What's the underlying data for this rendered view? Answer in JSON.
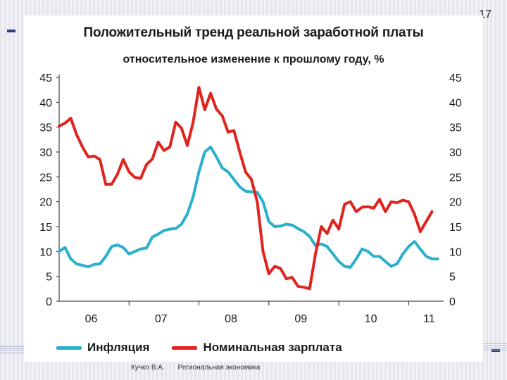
{
  "slide": {
    "number": "17"
  },
  "footer": {
    "author": "Кучко В.А.",
    "course": "Региональная экономика"
  },
  "colors": {
    "inflation": "#2ab0cc",
    "nominal_wage": "#e0241d"
  },
  "chart_data": {
    "type": "line",
    "title": "Положительный тренд реальной заработной платы",
    "subtitle": "относительное изменение к прошлому году, %",
    "ylim": [
      0,
      45
    ],
    "yticks": [
      "0",
      "5",
      "10",
      "15",
      "20",
      "25",
      "30",
      "35",
      "40",
      "45"
    ],
    "yticks_right": [
      "0",
      "5",
      "10",
      "15",
      "20",
      "25",
      "30",
      "35",
      "40",
      "45"
    ],
    "xlim": [
      0,
      66
    ],
    "xticks": [
      {
        "label": "06",
        "x": 5.5
      },
      {
        "label": "07",
        "x": 17.5
      },
      {
        "label": "08",
        "x": 29.5
      },
      {
        "label": "09",
        "x": 41.5
      },
      {
        "label": "10",
        "x": 53.5
      },
      {
        "label": "11",
        "x": 63.5
      }
    ],
    "xgrid_months": [
      12,
      24,
      36,
      48,
      60
    ],
    "legend": [
      "Инфляция",
      "Номинальная зарплата"
    ],
    "series": [
      {
        "name": "Инфляция",
        "color": "#2ab0cc",
        "x": [
          0,
          1,
          2,
          3,
          4,
          5,
          6,
          7,
          8,
          9,
          10,
          11,
          12,
          13,
          14,
          15,
          16,
          17,
          18,
          19,
          20,
          21,
          22,
          23,
          24,
          25,
          26,
          27,
          28,
          29,
          30,
          31,
          32,
          33,
          34,
          35,
          36,
          37,
          38,
          39,
          40,
          41,
          42,
          43,
          44,
          45,
          46,
          47,
          48,
          49,
          50,
          51,
          52,
          53,
          54,
          55,
          56,
          57,
          58,
          59,
          60,
          61,
          62,
          63,
          64,
          65
        ],
        "values": [
          10,
          10.8,
          8.5,
          7.5,
          7.2,
          6.9,
          7.4,
          7.5,
          9.0,
          11.0,
          11.3,
          10.8,
          9.5,
          10.0,
          10.5,
          10.7,
          12.9,
          13.5,
          14.2,
          14.5,
          14.6,
          15.5,
          17.5,
          21.0,
          26.0,
          30.0,
          31.0,
          29.0,
          26.8,
          26.0,
          24.5,
          23.0,
          22.1,
          22.0,
          21.9,
          20.0,
          16.0,
          15.0,
          15.1,
          15.5,
          15.3,
          14.6,
          14.0,
          13.0,
          11.2,
          11.5,
          11.0,
          9.5,
          8.0,
          7.0,
          6.8,
          8.5,
          10.5,
          10.0,
          9.0,
          9.0,
          8.0,
          7.0,
          7.5,
          9.5,
          11.0,
          12.0,
          10.5,
          9.0,
          8.5,
          8.5
        ]
      },
      {
        "name": "Номинальная зарплата",
        "color": "#e0241d",
        "x": [
          0,
          1,
          2,
          3,
          4,
          5,
          6,
          7,
          8,
          9,
          10,
          11,
          12,
          13,
          14,
          15,
          16,
          17,
          18,
          19,
          20,
          21,
          22,
          23,
          24,
          25,
          26,
          27,
          28,
          29,
          30,
          31,
          32,
          33,
          34,
          35,
          36,
          37,
          38,
          39,
          40,
          41,
          42,
          43,
          44,
          45,
          46,
          47,
          48,
          49,
          50,
          51,
          52,
          53,
          54,
          55,
          56,
          57,
          58,
          59,
          60,
          61,
          62,
          63,
          64
        ],
        "values": [
          35.2,
          35.8,
          36.8,
          33.5,
          31.0,
          29.0,
          29.2,
          28.5,
          23.5,
          23.5,
          25.5,
          28.5,
          26.0,
          24.9,
          24.7,
          27.5,
          28.6,
          32.0,
          30.3,
          31.0,
          36.0,
          34.8,
          31.3,
          36.0,
          43.0,
          38.5,
          41.8,
          38.6,
          37.3,
          34.0,
          34.3,
          30.0,
          26.0,
          24.5,
          20.0,
          10.0,
          5.5,
          7.0,
          6.6,
          4.5,
          4.8,
          3.0,
          2.8,
          2.5,
          9.5,
          15.0,
          13.6,
          16.3,
          14.5,
          19.5,
          20.0,
          18.0,
          18.9,
          19.0,
          18.7,
          20.5,
          18.0,
          20.0,
          19.8,
          20.3,
          20.0,
          17.5,
          14.0,
          16.0,
          18.0
        ]
      }
    ]
  }
}
